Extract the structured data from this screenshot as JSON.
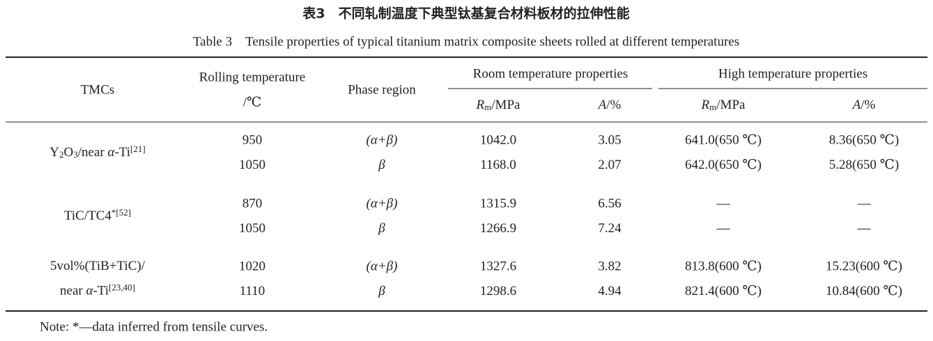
{
  "caption": {
    "chinese": "表3　不同轧制温度下典型钛基复合材料板材的拉伸性能",
    "english": "Table 3　Tensile properties of typical titanium matrix composite sheets rolled at different temperatures"
  },
  "header": {
    "tmcs": "TMCs",
    "rolling": [
      "Rolling temperature",
      "/℃"
    ],
    "phase": "Phase region",
    "room": "Room temperature properties",
    "high": "High temperature properties",
    "subcols": [
      [
        {
          "text": "R",
          "format": "italic"
        },
        {
          "text": "m",
          "format": "sub"
        },
        "/MPa"
      ],
      [
        {
          "text": "A",
          "format": "italic"
        },
        "/%"
      ],
      [
        {
          "text": "R",
          "format": "italic"
        },
        {
          "text": "m",
          "format": "sub"
        },
        "/MPa"
      ],
      [
        {
          "text": "A",
          "format": "italic"
        },
        "/%"
      ]
    ]
  },
  "groups": [
    {
      "material": [
        [
          "Y",
          {
            "text": "2",
            "format": "sub"
          },
          "O",
          {
            "text": "3",
            "format": "sub"
          },
          "/near ",
          {
            "text": "α",
            "format": "italic"
          },
          "-Ti",
          {
            "text": "[21]",
            "format": "sup"
          }
        ]
      ],
      "rows": [
        [
          "950",
          "(α+β)",
          "1042.0",
          "3.05",
          "641.0(650 ℃)",
          "8.36(650 ℃)"
        ],
        [
          "1050",
          "β",
          "1168.0",
          "2.07",
          "642.0(650 ℃)",
          "5.28(650 ℃)"
        ]
      ]
    },
    {
      "material": [
        [
          "TiC/TC4",
          {
            "text": "*[52]",
            "format": "sup"
          }
        ]
      ],
      "rows": [
        [
          "870",
          "(α+β)",
          "1315.9",
          "6.56",
          "—",
          "—"
        ],
        [
          "1050",
          "β",
          "1266.9",
          "7.24",
          "—",
          "—"
        ]
      ]
    },
    {
      "material": [
        [
          "5vol%(TiB+TiC)/"
        ],
        [
          "near ",
          {
            "text": "α",
            "format": "italic"
          },
          "-Ti",
          {
            "text": "[23,40]",
            "format": "sup"
          }
        ]
      ],
      "rows": [
        [
          "1020",
          "(α+β)",
          "1327.6",
          "3.82",
          "813.8(600 ℃)",
          "15.23(600 ℃)"
        ],
        [
          "1110",
          "β",
          "1298.6",
          "4.94",
          "821.4(600 ℃)",
          "10.84(600 ℃)"
        ]
      ]
    }
  ],
  "note": "Note: *—data inferred from tensile curves."
}
